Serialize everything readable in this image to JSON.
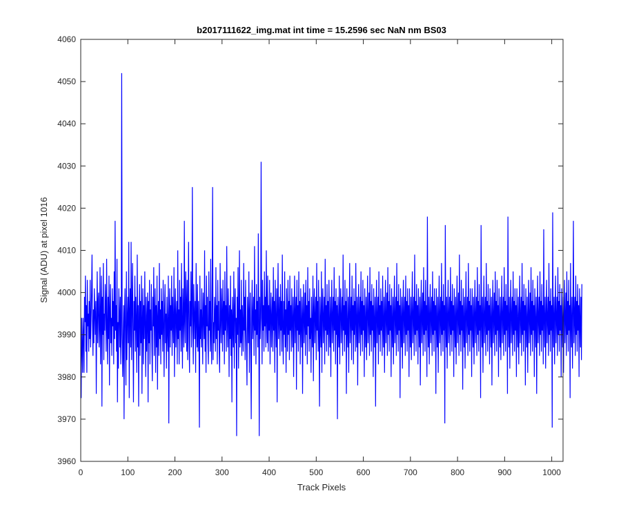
{
  "chart_data": {
    "type": "line",
    "title": "b2017111622_img.mat int time = 15.2596 sec  NaN nm BS03",
    "xlabel": "Track Pixels",
    "ylabel": "Signal (ADU) at pixel 1016",
    "xlim": [
      0,
      1024
    ],
    "ylim": [
      3960,
      4060
    ],
    "xticks": [
      0,
      100,
      200,
      300,
      400,
      500,
      600,
      700,
      800,
      900,
      1000
    ],
    "yticks": [
      3960,
      3970,
      3980,
      3990,
      4000,
      4010,
      4020,
      4030,
      4040,
      4050,
      4060
    ],
    "grid": false,
    "line_color": "#0000ff",
    "series": [
      {
        "x_start": 1,
        "x_step": 1,
        "values": [
          3975,
          3994,
          3987,
          3981,
          3994,
          3990,
          3981,
          3999,
          3993,
          4004,
          3986,
          3997,
          3981,
          4003,
          3992,
          3995,
          3986,
          3998,
          3989,
          4003,
          3987,
          3994,
          4000,
          4009,
          3993,
          3985,
          3996,
          3988,
          4001,
          3995,
          3990,
          3998,
          3976,
          3994,
          4005,
          3988,
          3998,
          4000,
          3987,
          3992,
          4006,
          3983,
          3995,
          4004,
          3973,
          3999,
          3990,
          4007,
          3984,
          3995,
          3991,
          4002,
          3997,
          3986,
          4008,
          3992,
          3983,
          3999,
          3989,
          4004,
          3978,
          3996,
          4002,
          3988,
          3994,
          3985,
          4001,
          3992,
          3998,
          3983,
          4005,
          3989,
          4017,
          3991,
          3997,
          3986,
          4008,
          3974,
          3993,
          3982,
          4001,
          3995,
          3987,
          3999,
          3983,
          3990,
          4052,
          3993,
          3980,
          3987,
          3997,
          3970,
          3995,
          4001,
          3989,
          3978,
          4005,
          3984,
          3994,
          3999,
          3988,
          4012,
          3975,
          3995,
          4001,
          3987,
          4012,
          3984,
          3996,
          4007,
          3989,
          3974,
          3998,
          3991,
          4004,
          3986,
          3999,
          3993,
          3981,
          4009,
          3987,
          3997,
          3973,
          3995,
          4002,
          3985,
          3998,
          3988,
          4004,
          3976,
          3993,
          4001,
          3983,
          3997,
          3989,
          4005,
          3992,
          3980,
          3999,
          3986,
          3994,
          4000,
          3974,
          3998,
          3988,
          4003,
          3983,
          3996,
          3991,
          4002,
          3987,
          3979,
          3999,
          3992,
          4006,
          3985,
          3995,
          4001,
          3981,
          3997,
          3987,
          4004,
          3977,
          3994,
          3998,
          3985,
          4007,
          3989,
          3996,
          3983,
          4001,
          3990,
          3998,
          3986,
          4003,
          3993,
          3980,
          3996,
          4002,
          3988,
          3995,
          3982,
          3999,
          3991,
          3986,
          4004,
          3969,
          3994,
          4001,
          3987,
          3997,
          3991,
          4004,
          3985,
          3999,
          3993,
          3988,
          4006,
          3980,
          3995,
          4001,
          3987,
          3994,
          3998,
          3983,
          4010,
          3989,
          3996,
          3983,
          4003,
          3991,
          3999,
          3986,
          4007,
          3993,
          3982,
          4001,
          3995,
          3987,
          4017,
          3993,
          3988,
          4005,
          3998,
          3986,
          4003,
          3984,
          3996,
          4012,
          3989,
          3981,
          3998,
          3992,
          4005,
          3987,
          3995,
          4025,
          3991,
          3983,
          4002,
          3995,
          3989,
          3998,
          3981,
          4007,
          3993,
          3987,
          4002,
          3986,
          3998,
          3991,
          3968,
          4004,
          3989,
          3996,
          3987,
          4001,
          3993,
          3983,
          4000,
          3994,
          3989,
          4010,
          3986,
          3997,
          3981,
          4004,
          3992,
          3999,
          3988,
          3983,
          4005,
          3991,
          3998,
          3986,
          4008,
          3990,
          3983,
          3999,
          4025,
          3984,
          3993,
          3988,
          3999,
          3995,
          3986,
          4006,
          3989,
          3997,
          3983,
          4003,
          3991,
          3998,
          3986,
          3981,
          4007,
          3993,
          3988,
          4001,
          3995,
          3986,
          4003,
          3990,
          3998,
          3983,
          4005,
          3991,
          3997,
          3986,
          4011,
          3994,
          3987,
          4001,
          3995,
          3980,
          3997,
          3989,
          4004,
          3985,
          3996,
          3974,
          3999,
          3992,
          3987,
          4005,
          3982,
          3996,
          4001,
          3988,
          3994,
          3966,
          3999,
          3990,
          4006,
          3982,
          3993,
          4010,
          3987,
          3996,
          3988,
          4003,
          3985,
          3997,
          3992,
          3986,
          4007,
          3991,
          3999,
          3984,
          4003,
          3992,
          3987,
          3978,
          3999,
          3994,
          3988,
          4005,
          3981,
          3995,
          4000,
          3987,
          3970,
          3996,
          4003,
          3989,
          3994,
          3999,
          3985,
          4011,
          3991,
          3996,
          3983,
          4002,
          3990,
          3998,
          3987,
          4014,
          3993,
          3966,
          3999,
          3989,
          3994,
          4031,
          3996,
          3983,
          4003,
          3991,
          3997,
          3986,
          4005,
          3992,
          3999,
          3987,
          4010,
          3993,
          3988,
          4004,
          3986,
          3997,
          3991,
          4003,
          3983,
          3995,
          4000,
          3987,
          3994,
          3999,
          3986,
          4006,
          3991,
          3998,
          3981,
          4003,
          3993,
          3987,
          4001,
          3974,
          3996,
          4007,
          3989,
          3994,
          3999,
          3985,
          4002,
          3991,
          3998,
          3986,
          4009,
          3992,
          3983,
          3998,
          3990,
          4005,
          3987,
          3996,
          3981,
          4001,
          3995,
          3986,
          4003,
          3990,
          3998,
          3984,
          4004,
          3991,
          3997,
          3986,
          4001,
          3993,
          3987,
          3999,
          3980,
          3995,
          4004,
          3988,
          3995,
          3999,
          3977,
          4003,
          3991,
          3997,
          3986,
          4005,
          3990,
          3998,
          3983,
          4001,
          3992,
          3987,
          3999,
          3976,
          3995,
          4002,
          3988,
          3993,
          4000,
          3985,
          4003,
          3990,
          3997,
          3983,
          4006,
          3992,
          3998,
          3986,
          4001,
          3989,
          3994,
          3981,
          3999,
          3992,
          3987,
          4004,
          3979,
          3996,
          4001,
          3988,
          3994,
          3999,
          3984,
          4007,
          3991,
          3998,
          3986,
          4003,
          3990,
          3973,
          3999,
          3992,
          3987,
          4005,
          3981,
          3996,
          4001,
          3988,
          3994,
          3999,
          3983,
          4008,
          3991,
          3997,
          3986,
          4002,
          3990,
          3998,
          3985,
          4003,
          3992,
          3987,
          3999,
          3980,
          3995,
          4003,
          3988,
          3994,
          3999,
          3986,
          4006,
          3991,
          3998,
          3983,
          4001,
          3990,
          3997,
          3970,
          3999,
          3992,
          3987,
          4004,
          3983,
          3996,
          4001,
          3988,
          3994,
          3999,
          3985,
          4009,
          3991,
          3997,
          3986,
          4003,
          3990,
          3998,
          3976,
          4001,
          3992,
          3987,
          3999,
          3981,
          3995,
          4007,
          3988,
          3994,
          3999,
          3984,
          4004,
          3991,
          3997,
          3983,
          4001,
          3990,
          3998,
          3986,
          4007,
          3993,
          3987,
          3999,
          3978,
          3995,
          4002,
          3988,
          3994,
          3999,
          3985,
          4005,
          3990,
          3998,
          3986,
          4003,
          3991,
          3997,
          3980,
          4001,
          3993,
          3987,
          3999,
          3984,
          3995,
          4004,
          3988,
          3994,
          4000,
          3985,
          4006,
          3990,
          3998,
          3986,
          4002,
          3991,
          3997,
          3980,
          4001,
          3993,
          3987,
          3999,
          3973,
          3995,
          4003,
          3988,
          3994,
          3999,
          3983,
          4005,
          3990,
          3997,
          3986,
          4001,
          3991,
          3998,
          3985,
          4004,
          3993,
          3987,
          3999,
          3981,
          3995,
          4003,
          3988,
          3994,
          4000,
          3985,
          4006,
          3990,
          3998,
          3986,
          4002,
          3991,
          3997,
          3980,
          4001,
          3993,
          3987,
          3999,
          3983,
          3995,
          4004,
          3988,
          3994,
          3999,
          3985,
          4007,
          3990,
          3998,
          3986,
          4002,
          3991,
          3997,
          3975,
          4001,
          3993,
          3987,
          3999,
          3982,
          3995,
          4003,
          3988,
          3994,
          3999,
          3985,
          4004,
          3990,
          3998,
          3986,
          4001,
          3991,
          3997,
          3980,
          4001,
          3993,
          3987,
          3999,
          3984,
          3995,
          4005,
          3988,
          3994,
          3999,
          3985,
          4009,
          3990,
          3998,
          3986,
          4002,
          3991,
          3997,
          3983,
          4001,
          3993,
          3987,
          3999,
          3978,
          3995,
          4003,
          3988,
          3994,
          4000,
          3985,
          4006,
          3990,
          3998,
          3986,
          4003,
          3991,
          3997,
          3980,
          4018,
          3993,
          3987,
          3999,
          3983,
          3995,
          4002,
          3988,
          3994,
          3999,
          3985,
          4005,
          3990,
          3998,
          3986,
          4001,
          3991,
          3997,
          3976,
          4001,
          3993,
          3987,
          3999,
          3981,
          3995,
          4004,
          3988,
          3994,
          3999,
          3985,
          4007,
          3990,
          3998,
          3986,
          4002,
          3991,
          3997,
          3969,
          4016,
          3993,
          3987,
          3999,
          3982,
          3995,
          4003,
          3988,
          3994,
          3999,
          3985,
          4006,
          3990,
          3998,
          3986,
          4002,
          3991,
          3997,
          3980,
          4001,
          3993,
          3987,
          3999,
          3983,
          3995,
          4004,
          3988,
          3994,
          4000,
          3985,
          4009,
          3990,
          3998,
          3986,
          4003,
          3991,
          3997,
          3977,
          4001,
          3993,
          3987,
          3999,
          3982,
          3995,
          4005,
          3988,
          3994,
          3999,
          3985,
          4007,
          3990,
          3998,
          3986,
          4001,
          3991,
          3997,
          3980,
          4001,
          3993,
          3987,
          3999,
          3983,
          3995,
          4003,
          3988,
          3994,
          3999,
          3985,
          4006,
          3990,
          3998,
          3986,
          4002,
          3991,
          3997,
          3975,
          4016,
          3993,
          3987,
          3999,
          3981,
          3995,
          4004,
          3988,
          3994,
          3999,
          3985,
          4007,
          3990,
          3998,
          3986,
          4002,
          3991,
          3997,
          3983,
          4001,
          3993,
          3987,
          3999,
          3978,
          3995,
          4003,
          3988,
          3994,
          4000,
          3985,
          4005,
          3990,
          3998,
          3986,
          4003,
          3991,
          3997,
          3980,
          4001,
          3993,
          3987,
          3999,
          3984,
          3995,
          4004,
          3988,
          3994,
          3999,
          3985,
          4006,
          3990,
          3998,
          3986,
          4002,
          3991,
          3997,
          3976,
          4018,
          3993,
          3987,
          3999,
          3982,
          3995,
          4003,
          3988,
          3994,
          3999,
          3985,
          4005,
          3990,
          3998,
          3986,
          4001,
          3991,
          3997,
          3980,
          4001,
          3993,
          3987,
          3999,
          3983,
          3995,
          4004,
          3988,
          3994,
          3999,
          3985,
          4007,
          3990,
          3998,
          3986,
          4002,
          3991,
          3997,
          3978,
          4001,
          3993,
          3987,
          3999,
          3981,
          3995,
          4003,
          3988,
          3994,
          4000,
          3985,
          4006,
          3990,
          3998,
          3986,
          4003,
          3991,
          3997,
          3980,
          4001,
          3993,
          3987,
          3999,
          3976,
          3995,
          4004,
          3988,
          3994,
          3999,
          3985,
          4005,
          3990,
          3998,
          3986,
          4002,
          3991,
          3997,
          3983,
          4015,
          3993,
          3987,
          3999,
          3982,
          3995,
          4003,
          3988,
          3994,
          3999,
          3985,
          4007,
          3990,
          3998,
          3986,
          4001,
          3991,
          3997,
          3968,
          4019,
          3993,
          3987,
          3999,
          3983,
          3995,
          4004,
          3988,
          3994,
          3999,
          3985,
          4006,
          3990,
          3998,
          3986,
          4002,
          3991,
          3997,
          3980,
          4001,
          3993,
          3987,
          3999,
          3981,
          3995,
          4003,
          3988,
          3994,
          4000,
          3985,
          4005,
          3990,
          3998,
          3986,
          4003,
          3991,
          3997,
          3975,
          4007,
          3993,
          3987,
          3999,
          3982,
          3995,
          4017,
          3988,
          3994,
          3999,
          3985,
          4004,
          3990,
          3998,
          3986,
          4002,
          3991,
          3997,
          3980,
          4001,
          3993,
          3987,
          3999,
          3984,
          4002
        ]
      }
    ]
  }
}
